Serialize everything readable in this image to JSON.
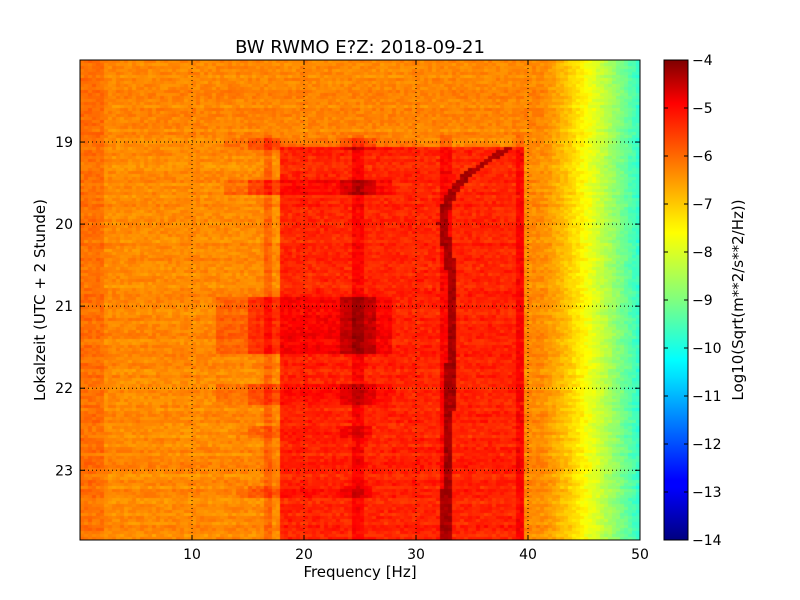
{
  "chart_data": {
    "type": "heatmap",
    "title": "BW RWMO E?Z: 2018-09-21",
    "xlabel": "Frequency [Hz]",
    "ylabel": "Lokalzeit (UTC + 2 Stunde)",
    "colorbar_label": "Log10(Sqrt(m**2/s**2/Hz))",
    "xlim": [
      0,
      50
    ],
    "ylim": [
      18,
      23.85
    ],
    "y_inverted": true,
    "x_ticks": [
      10,
      20,
      30,
      40,
      50
    ],
    "y_ticks": [
      19,
      20,
      21,
      22,
      23
    ],
    "colorbar_range": [
      -14,
      -4
    ],
    "colorbar_ticks": [
      -4,
      -5,
      -6,
      -7,
      -8,
      -9,
      -10,
      -11,
      -12,
      -13,
      -14
    ],
    "colormap": "jet",
    "grid": true,
    "features": {
      "rolloff_start_hz": 41,
      "rolloff_end_hz": 50,
      "level_below_rolloff": -6.6,
      "level_at_50hz": -9.8,
      "high_energy_band_hz": [
        18,
        39.5
      ],
      "high_energy_band_start_hour": 19.05,
      "high_energy_band_level": -5.6,
      "persistent_lines_hz": [
        16.8,
        24.8,
        32.8,
        39.3
      ],
      "drifting_line": [
        {
          "hour": 19.05,
          "hz": 38.5
        },
        {
          "hour": 19.4,
          "hz": 34.5
        },
        {
          "hour": 19.6,
          "hz": 33.3
        },
        {
          "hour": 19.8,
          "hz": 32.6
        },
        {
          "hour": 20.0,
          "hz": 32.4
        },
        {
          "hour": 20.3,
          "hz": 32.8
        },
        {
          "hour": 20.6,
          "hz": 33.2
        },
        {
          "hour": 21.0,
          "hz": 33.3
        },
        {
          "hour": 21.5,
          "hz": 33.2
        },
        {
          "hour": 22.0,
          "hz": 33.0
        },
        {
          "hour": 22.5,
          "hz": 32.9
        },
        {
          "hour": 23.0,
          "hz": 32.8
        },
        {
          "hour": 23.85,
          "hz": 32.7
        }
      ],
      "activity_bursts": [
        {
          "hour_start": 18.95,
          "hour_end": 19.1,
          "hz_start": 13,
          "hz_end": 30,
          "boost": 0.6
        },
        {
          "hour_start": 19.45,
          "hour_end": 19.65,
          "hz_start": 13,
          "hz_end": 28,
          "boost": 0.8
        },
        {
          "hour_start": 20.9,
          "hour_end": 21.6,
          "hz_start": 12,
          "hz_end": 28,
          "boost": 0.9
        },
        {
          "hour_start": 21.95,
          "hour_end": 22.2,
          "hz_start": 12,
          "hz_end": 28,
          "boost": 0.6
        },
        {
          "hour_start": 22.45,
          "hour_end": 22.6,
          "hz_start": 14,
          "hz_end": 26,
          "boost": 0.4
        },
        {
          "hour_start": 23.2,
          "hour_end": 23.35,
          "hz_start": 14,
          "hz_end": 26,
          "boost": 0.4
        }
      ]
    }
  }
}
